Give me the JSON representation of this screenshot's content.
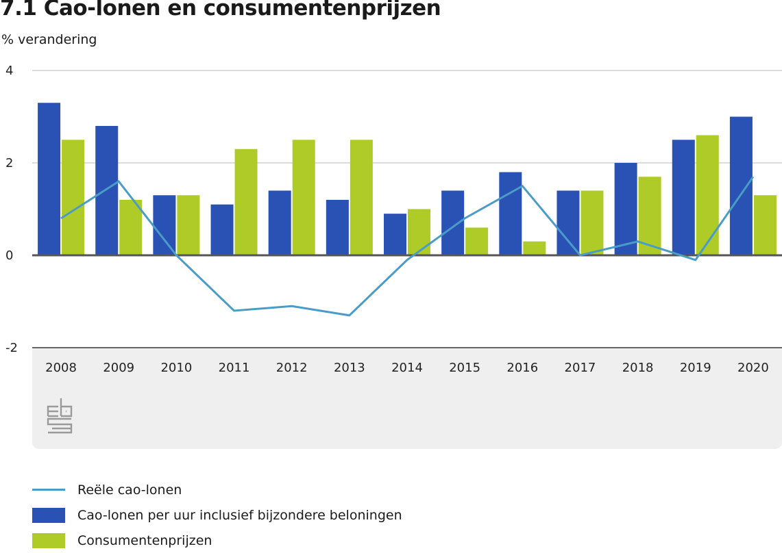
{
  "header": {
    "title": "7.1 Cao-lonen en consumentenprijzen",
    "unit_label": "% verandering"
  },
  "colors": {
    "cao_lonen": "#2a52b5",
    "consumentenprijzen": "#afcb27",
    "reele_cao_lonen": "#4a9cc8",
    "gridline": "#c8c8c8",
    "zero_line": "#555555",
    "panel": "#efefef"
  },
  "logo": {
    "icon": "cbs-logo-icon"
  },
  "legend": [
    {
      "label": "Reële cao-lonen",
      "type": "line",
      "color": "#4a9cc8"
    },
    {
      "label": "Cao-lonen per uur inclusief bijzondere beloningen",
      "type": "bar",
      "color": "#2a52b5"
    },
    {
      "label": "Consumentenprijzen",
      "type": "bar",
      "color": "#afcb27"
    }
  ],
  "chart_data": {
    "type": "bar",
    "title": "7.1 Cao-lonen en consumentenprijzen",
    "xlabel": "",
    "ylabel": "% verandering",
    "ylim": [
      -2,
      4
    ],
    "yticks": [
      4,
      2,
      0,
      -2
    ],
    "ytick_labels": [
      "4",
      "2",
      "0",
      "-2"
    ],
    "grid": true,
    "legend_position": "bottom",
    "categories": [
      "2008",
      "2009",
      "2010",
      "2011",
      "2012",
      "2013",
      "2014",
      "2015",
      "2016",
      "2017",
      "2018",
      "2019",
      "2020"
    ],
    "series": [
      {
        "name": "Cao-lonen per uur inclusief bijzondere beloningen",
        "type": "bar",
        "color": "#2a52b5",
        "values": [
          3.3,
          2.8,
          1.3,
          1.1,
          1.4,
          1.2,
          0.9,
          1.4,
          1.8,
          1.4,
          2.0,
          2.5,
          3.0
        ]
      },
      {
        "name": "Consumentenprijzen",
        "type": "bar",
        "color": "#afcb27",
        "values": [
          2.5,
          1.2,
          1.3,
          2.3,
          2.5,
          2.5,
          1.0,
          0.6,
          0.3,
          1.4,
          1.7,
          2.6,
          1.3
        ]
      },
      {
        "name": "Reële cao-lonen",
        "type": "line",
        "color": "#4a9cc8",
        "values": [
          0.8,
          1.6,
          0.0,
          -1.2,
          -1.1,
          -1.3,
          -0.1,
          0.8,
          1.5,
          0.0,
          0.3,
          -0.1,
          1.7
        ]
      }
    ]
  }
}
